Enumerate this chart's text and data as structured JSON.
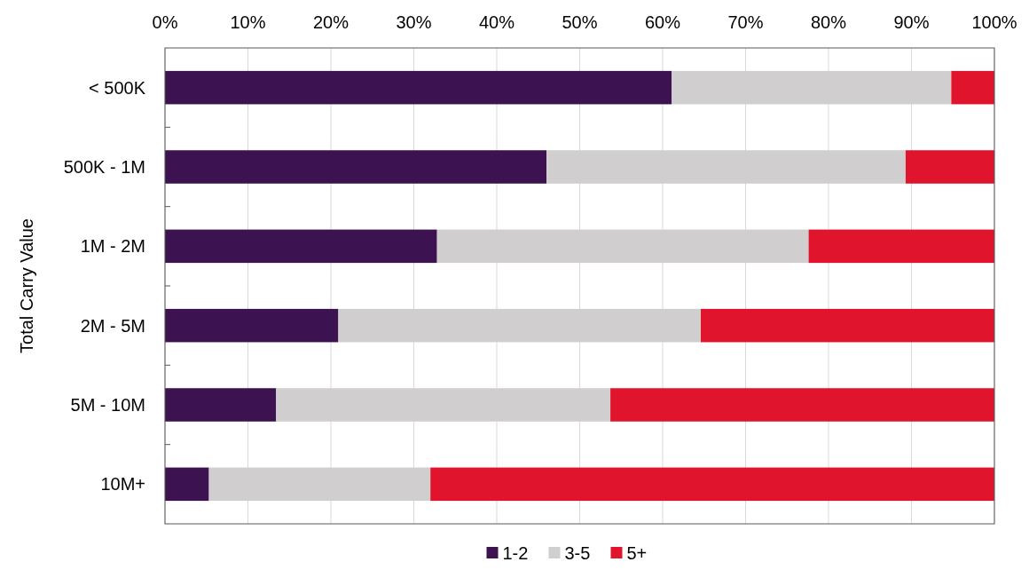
{
  "chart_data": {
    "type": "bar",
    "orientation": "horizontal",
    "stacked": true,
    "ylabel": "Total Carry Value",
    "categories": [
      "< 500K",
      "500K - 1M",
      "1M - 2M",
      "2M - 5M",
      "5M - 10M",
      "10M+"
    ],
    "series": [
      {
        "name": "1-2",
        "color": "#3c1250",
        "values": [
          61.1,
          46.0,
          32.8,
          20.9,
          13.4,
          5.3
        ]
      },
      {
        "name": "3-5",
        "color": "#d0cecf",
        "values": [
          33.7,
          43.3,
          44.8,
          43.7,
          40.3,
          26.7
        ]
      },
      {
        "name": "5+",
        "color": "#e0142c",
        "values": [
          5.2,
          10.7,
          22.4,
          35.4,
          46.3,
          68.0
        ]
      }
    ],
    "xlim": [
      0,
      100
    ],
    "xticks": [
      {
        "value": 0,
        "label": "0%"
      },
      {
        "value": 10,
        "label": "10%"
      },
      {
        "value": 20,
        "label": "20%"
      },
      {
        "value": 30,
        "label": "30%"
      },
      {
        "value": 40,
        "label": "40%"
      },
      {
        "value": 50,
        "label": "50%"
      },
      {
        "value": 60,
        "label": "60%"
      },
      {
        "value": 70,
        "label": "70%"
      },
      {
        "value": 80,
        "label": "80%"
      },
      {
        "value": 90,
        "label": "90%"
      },
      {
        "value": 100,
        "label": "100%"
      }
    ],
    "grid": "x",
    "legend": "bottom"
  }
}
